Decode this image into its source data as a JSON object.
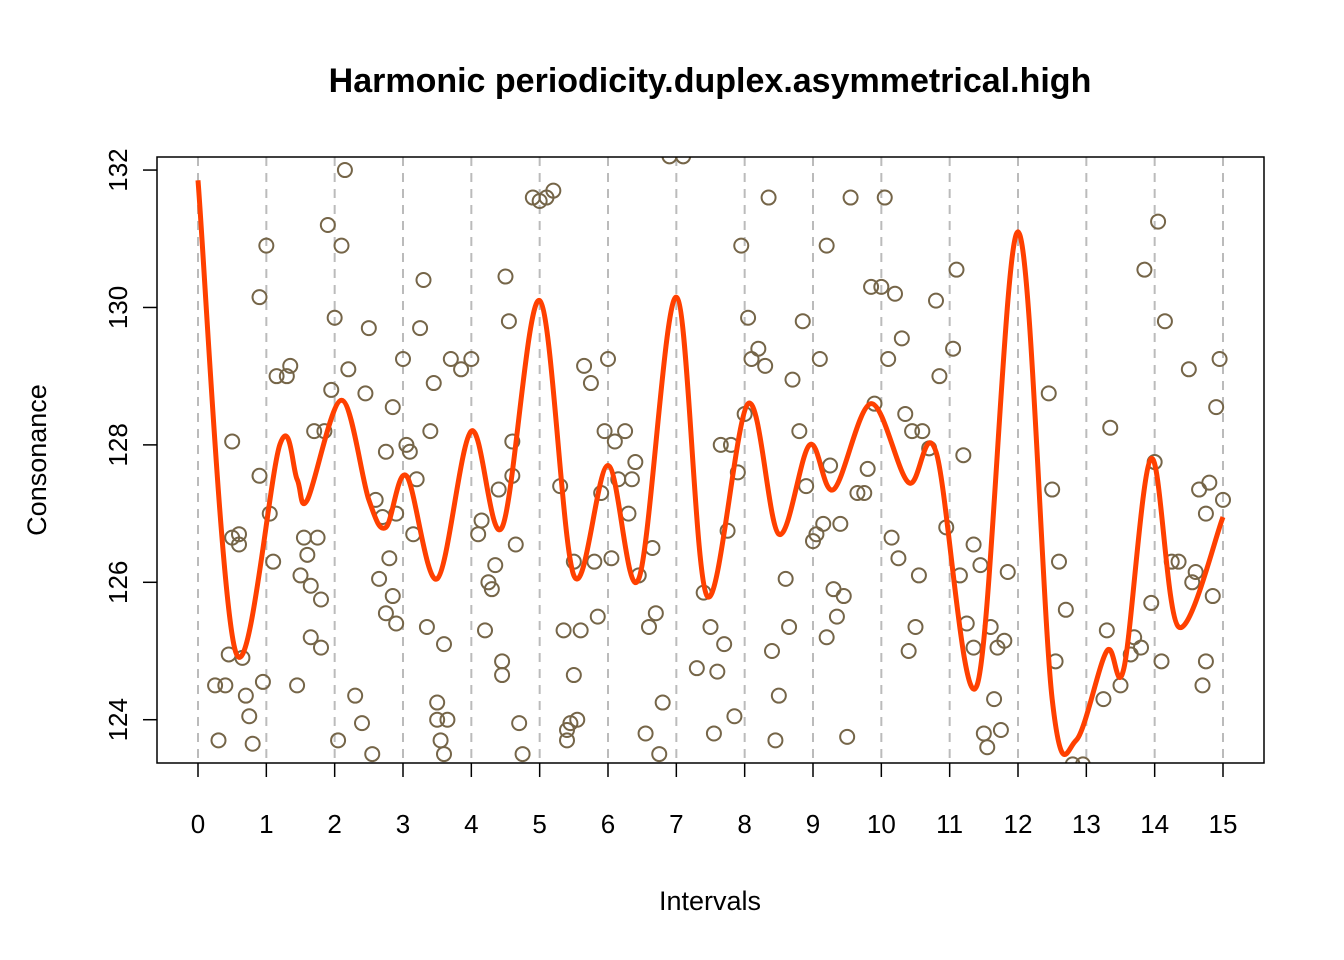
{
  "chart_data": {
    "type": "scatter",
    "title": "Harmonic periodicity.duplex.asymmetrical.high",
    "xlabel": "Intervals",
    "ylabel": "Consonance",
    "xlim": [
      -0.6,
      15.6
    ],
    "ylim": [
      123.37,
      132.19
    ],
    "xticks": [
      0,
      1,
      2,
      3,
      4,
      5,
      6,
      7,
      8,
      9,
      10,
      11,
      12,
      13,
      14,
      15
    ],
    "yticks": [
      124,
      126,
      128,
      130,
      132
    ],
    "vgrid": true,
    "series": [
      {
        "type": "scatter",
        "color": "#756548",
        "x": [
          0.25,
          0.3,
          0.4,
          0.45,
          0.5,
          0.5,
          0.6,
          0.6,
          0.65,
          0.7,
          0.75,
          0.8,
          0.9,
          0.9,
          0.95,
          1.0,
          1.05,
          1.1,
          1.15,
          1.3,
          1.35,
          1.45,
          1.5,
          1.55,
          1.6,
          1.65,
          1.65,
          1.7,
          1.75,
          1.8,
          1.8,
          1.85,
          1.9,
          1.95,
          2.0,
          2.05,
          2.1,
          2.15,
          2.2,
          2.3,
          2.4,
          2.45,
          2.5,
          2.55,
          2.6,
          2.65,
          2.7,
          2.75,
          2.75,
          2.8,
          2.85,
          2.85,
          2.9,
          2.9,
          3.0,
          3.05,
          3.1,
          3.15,
          3.2,
          3.25,
          3.3,
          3.35,
          3.4,
          3.45,
          3.5,
          3.5,
          3.55,
          3.6,
          3.6,
          3.65,
          3.7,
          3.85,
          4.0,
          4.1,
          4.15,
          4.2,
          4.25,
          4.3,
          4.35,
          4.4,
          4.45,
          4.45,
          4.5,
          4.55,
          4.6,
          4.6,
          4.65,
          4.7,
          4.75,
          4.9,
          5.0,
          5.1,
          5.2,
          5.3,
          5.35,
          5.4,
          5.4,
          5.45,
          5.5,
          5.5,
          5.55,
          5.6,
          5.65,
          5.75,
          5.8,
          5.85,
          5.9,
          5.95,
          6.0,
          6.05,
          6.1,
          6.15,
          6.25,
          6.3,
          6.35,
          6.4,
          6.45,
          6.55,
          6.6,
          6.65,
          6.7,
          6.75,
          6.8,
          6.9,
          7.1,
          7.3,
          7.4,
          7.5,
          7.55,
          7.6,
          7.65,
          7.7,
          7.75,
          7.8,
          7.85,
          7.9,
          7.95,
          8.0,
          8.05,
          8.1,
          8.2,
          8.3,
          8.35,
          8.4,
          8.45,
          8.5,
          8.6,
          8.65,
          8.7,
          8.8,
          8.85,
          8.9,
          9.0,
          9.05,
          9.1,
          9.15,
          9.2,
          9.2,
          9.25,
          9.3,
          9.35,
          9.4,
          9.45,
          9.5,
          9.55,
          9.65,
          9.75,
          9.8,
          9.85,
          9.9,
          10.0,
          10.05,
          10.1,
          10.15,
          10.2,
          10.25,
          10.3,
          10.35,
          10.4,
          10.45,
          10.5,
          10.55,
          10.6,
          10.7,
          10.8,
          10.85,
          10.95,
          11.05,
          11.1,
          11.15,
          11.2,
          11.25,
          11.35,
          11.35,
          11.45,
          11.5,
          11.55,
          11.6,
          11.65,
          11.7,
          11.75,
          11.8,
          11.85,
          12.45,
          12.5,
          12.55,
          12.6,
          12.7,
          12.8,
          12.95,
          13.25,
          13.3,
          13.35,
          13.5,
          13.65,
          13.7,
          13.8,
          13.85,
          13.95,
          14.0,
          14.05,
          14.1,
          14.15,
          14.25,
          14.35,
          14.5,
          14.55,
          14.6,
          14.65,
          14.7,
          14.75,
          14.75,
          14.8,
          14.85,
          14.9,
          14.95,
          15.0
        ],
        "values": [
          124.5,
          123.7,
          124.5,
          124.95,
          128.05,
          126.65,
          126.7,
          126.55,
          124.9,
          124.35,
          124.05,
          123.65,
          127.55,
          130.15,
          124.55,
          130.9,
          127.0,
          126.3,
          129.0,
          129.0,
          129.15,
          124.5,
          126.1,
          126.65,
          126.4,
          125.2,
          125.95,
          128.2,
          126.65,
          125.05,
          125.75,
          128.2,
          131.2,
          128.8,
          129.85,
          123.7,
          130.9,
          132.0,
          129.1,
          124.35,
          123.95,
          128.75,
          129.7,
          123.5,
          127.2,
          126.05,
          126.95,
          127.9,
          125.55,
          126.35,
          125.8,
          128.55,
          127.0,
          125.4,
          129.25,
          128.0,
          127.9,
          126.7,
          127.5,
          129.7,
          130.4,
          125.35,
          128.2,
          128.9,
          124.0,
          124.25,
          123.7,
          125.1,
          123.5,
          124.0,
          129.25,
          129.1,
          129.25,
          126.7,
          126.9,
          125.3,
          126.0,
          125.9,
          126.25,
          127.35,
          124.65,
          124.85,
          130.45,
          129.8,
          127.55,
          128.05,
          126.55,
          123.95,
          123.5,
          131.6,
          131.55,
          131.6,
          131.7,
          127.4,
          125.3,
          123.85,
          123.7,
          123.95,
          126.3,
          124.65,
          124.0,
          125.3,
          129.15,
          128.9,
          126.3,
          125.5,
          127.3,
          128.2,
          129.25,
          126.35,
          128.05,
          127.5,
          128.2,
          127.0,
          127.5,
          127.75,
          126.1,
          123.8,
          125.35,
          126.5,
          125.55,
          123.5,
          124.25,
          132.2,
          132.2,
          124.75,
          125.85,
          125.35,
          123.8,
          124.7,
          128.0,
          125.1,
          126.75,
          128.0,
          124.05,
          127.6,
          130.9,
          128.45,
          129.85,
          129.25,
          129.4,
          129.15,
          131.6,
          125.0,
          123.7,
          124.35,
          126.05,
          125.35,
          128.95,
          128.2,
          129.8,
          127.4,
          126.6,
          126.7,
          129.25,
          126.85,
          125.2,
          130.9,
          127.7,
          125.9,
          125.5,
          126.85,
          125.8,
          123.75,
          131.6,
          127.3,
          127.3,
          127.65,
          130.3,
          128.6,
          130.3,
          131.6,
          129.25,
          126.65,
          130.2,
          126.35,
          129.55,
          128.45,
          125.0,
          128.2,
          125.35,
          126.1,
          128.2,
          127.95,
          130.1,
          129.0,
          126.8,
          129.4,
          130.55,
          126.1,
          127.85,
          125.4,
          126.55,
          125.05,
          126.25,
          123.8,
          123.6,
          125.35,
          124.3,
          125.05,
          123.85,
          125.15,
          126.15,
          128.75,
          127.35,
          124.85,
          126.3,
          125.6,
          123.35,
          123.35,
          124.3,
          125.3,
          128.25,
          124.5,
          124.95,
          125.2,
          125.05,
          130.55,
          125.7,
          127.75,
          131.25,
          124.85,
          129.8,
          126.3,
          126.3,
          129.1,
          126.0,
          126.15,
          127.35,
          124.5,
          124.85,
          127.0,
          127.45,
          125.8,
          128.55,
          129.25,
          127.2
        ]
      },
      {
        "type": "line",
        "color": "#ff4000",
        "x": [
          0,
          0.55,
          1.2,
          1.45,
          1.6,
          2.1,
          2.5,
          2.75,
          3.05,
          3.5,
          4.0,
          4.45,
          5.0,
          5.5,
          6.0,
          6.45,
          7.0,
          7.45,
          8.05,
          8.5,
          8.95,
          9.3,
          9.85,
          10.4,
          10.8,
          11.4,
          12.0,
          12.5,
          12.85,
          13.3,
          13.55,
          13.95,
          14.35,
          15
        ],
        "values": [
          131.85,
          124.99,
          128.01,
          127.5,
          127.2,
          128.65,
          127.2,
          126.8,
          127.55,
          126.05,
          128.2,
          126.8,
          130.1,
          126.1,
          127.7,
          126.05,
          130.15,
          125.8,
          128.6,
          126.7,
          128.0,
          127.35,
          128.6,
          127.45,
          127.9,
          124.5,
          131.1,
          124.3,
          123.7,
          125.0,
          124.75,
          127.8,
          125.35,
          126.95
        ]
      }
    ]
  }
}
